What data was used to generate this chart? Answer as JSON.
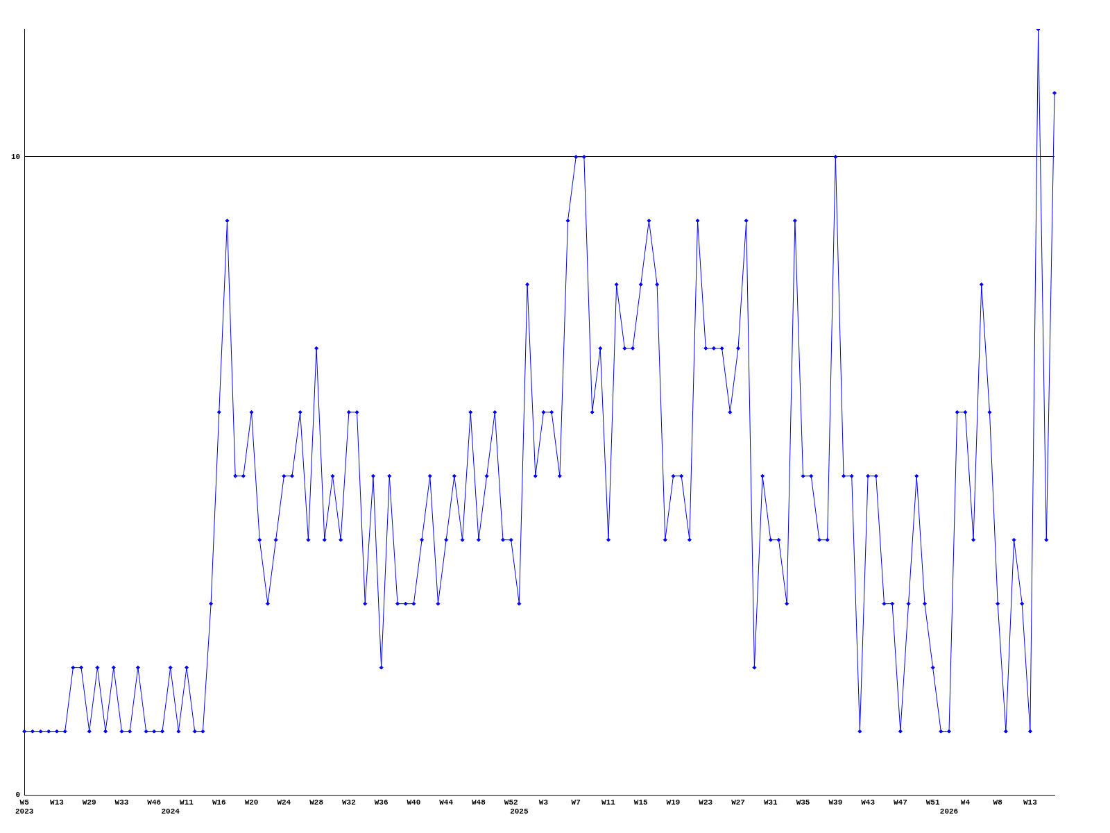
{
  "chart_data": {
    "type": "line",
    "categories": [
      "W5\n2023",
      null,
      null,
      null,
      "W13",
      null,
      null,
      null,
      "W29",
      null,
      null,
      null,
      "W33",
      null,
      null,
      null,
      "W46",
      null,
      "\n2024",
      null,
      "W11",
      null,
      null,
      null,
      "W16",
      null,
      null,
      null,
      "W20",
      null,
      null,
      null,
      "W24",
      null,
      null,
      null,
      "W28",
      null,
      null,
      null,
      "W32",
      null,
      null,
      null,
      "W36",
      null,
      null,
      null,
      "W40",
      null,
      null,
      null,
      "W44",
      null,
      null,
      null,
      "W48",
      null,
      null,
      null,
      "W52",
      "\n2025",
      null,
      null,
      "W3",
      null,
      null,
      null,
      "W7",
      null,
      null,
      null,
      "W11",
      null,
      null,
      null,
      "W15",
      null,
      null,
      null,
      "W19",
      null,
      null,
      null,
      "W23",
      null,
      null,
      null,
      "W27",
      null,
      null,
      null,
      "W31",
      null,
      null,
      null,
      "W35",
      null,
      null,
      null,
      "W39",
      null,
      null,
      null,
      "W43",
      null,
      null,
      null,
      "W47",
      null,
      null,
      null,
      "W51",
      null,
      "\n2026",
      null,
      "W4",
      null,
      null,
      null,
      "W8",
      null,
      null,
      null,
      "W13",
      null,
      null,
      null
    ],
    "series": [
      {
        "color": "#0000ff",
        "values": [
          1,
          1,
          1,
          1,
          1,
          1,
          2,
          2,
          1,
          2,
          1,
          2,
          1,
          1,
          2,
          1,
          1,
          1,
          2,
          1,
          2,
          1,
          1,
          3,
          6,
          9,
          5,
          5,
          6,
          4,
          3,
          4,
          5,
          5,
          6,
          4,
          7,
          4,
          5,
          4,
          6,
          6,
          3,
          5,
          2,
          5,
          3,
          3,
          3,
          4,
          5,
          3,
          4,
          5,
          4,
          6,
          4,
          5,
          6,
          4,
          4,
          3,
          8,
          5,
          6,
          6,
          5,
          9,
          10,
          10,
          6,
          7,
          4,
          8,
          7,
          7,
          8,
          9,
          8,
          4,
          5,
          5,
          4,
          9,
          7,
          7,
          7,
          6,
          7,
          9,
          2,
          5,
          4,
          4,
          3,
          9,
          5,
          5,
          4,
          4,
          10,
          5,
          5,
          1,
          5,
          5,
          3,
          3,
          1,
          3,
          5,
          3,
          2,
          1,
          1,
          6,
          6,
          4,
          8,
          6,
          3,
          1,
          4,
          3,
          1,
          12,
          4,
          11
        ]
      }
    ],
    "ylim": [
      0,
      12
    ],
    "yticks": [
      0,
      10
    ],
    "grid": "y",
    "marker": "diamond",
    "legend": false
  }
}
